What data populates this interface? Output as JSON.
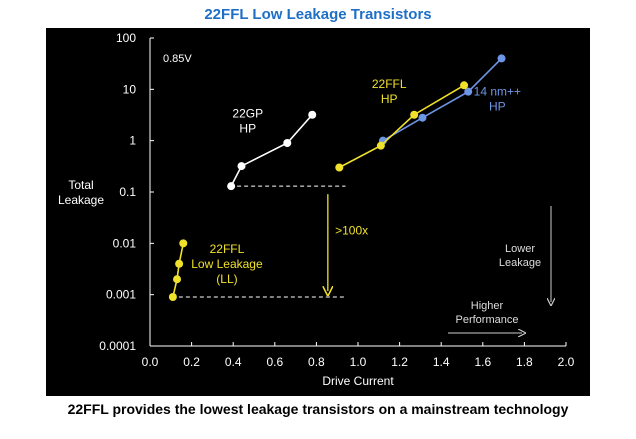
{
  "title": "22FFL Low Leakage Transistors",
  "caption": "22FFL provides the lowest leakage transistors on a mainstream technology",
  "chart_data": {
    "type": "scatter",
    "title": "22FFL Low Leakage Transistors",
    "xlabel": "Drive Current",
    "ylabel": [
      "Total",
      "Leakage"
    ],
    "xlim": [
      0.0,
      2.0
    ],
    "ylim": [
      0.0001,
      100
    ],
    "yscale": "log",
    "xticks": [
      "0.0",
      "0.2",
      "0.4",
      "0.6",
      "0.8",
      "1.0",
      "1.2",
      "1.4",
      "1.6",
      "1.8",
      "2.0"
    ],
    "yticks": [
      "100",
      "10",
      "1",
      "0.1",
      "0.01",
      "0.001",
      "0.0001"
    ],
    "grid": false,
    "voltage_label": "0.85V",
    "colors": {
      "background": "#000000",
      "white": "#ffffff",
      "yellow": "#f0e12a",
      "blue": "#6e96e6",
      "text": "#ffffff"
    },
    "series": [
      {
        "name": "22GP HP",
        "label_lines": [
          "22GP",
          "HP"
        ],
        "color": "#ffffff",
        "points": [
          [
            0.39,
            0.13
          ],
          [
            0.44,
            0.32
          ],
          [
            0.66,
            0.9
          ],
          [
            0.78,
            3.2
          ]
        ]
      },
      {
        "name": "22FFL LL",
        "label_lines": [
          "22FFL",
          "Low Leakage",
          "(LL)"
        ],
        "color": "#f0e12a",
        "points": [
          [
            0.11,
            0.0009
          ],
          [
            0.13,
            0.002
          ],
          [
            0.14,
            0.004
          ],
          [
            0.16,
            0.01
          ]
        ]
      },
      {
        "name": "14 nm++ HP",
        "label_lines": [
          "14 nm++",
          "HP"
        ],
        "color": "#6e96e6",
        "points": [
          [
            1.12,
            1.0
          ],
          [
            1.31,
            2.8
          ],
          [
            1.53,
            9
          ],
          [
            1.69,
            40
          ]
        ]
      },
      {
        "name": "22FFL HP",
        "label_lines": [
          "22FFL",
          "HP"
        ],
        "color": "#f0e12a",
        "points": [
          [
            0.91,
            0.3
          ],
          [
            1.11,
            0.8
          ],
          [
            1.27,
            3.2
          ],
          [
            1.51,
            12
          ]
        ]
      }
    ],
    "annotations": {
      "improvement": ">100x",
      "lower_leakage": [
        "Lower",
        "Leakage"
      ],
      "higher_performance": [
        "Higher",
        "Performance"
      ]
    }
  }
}
